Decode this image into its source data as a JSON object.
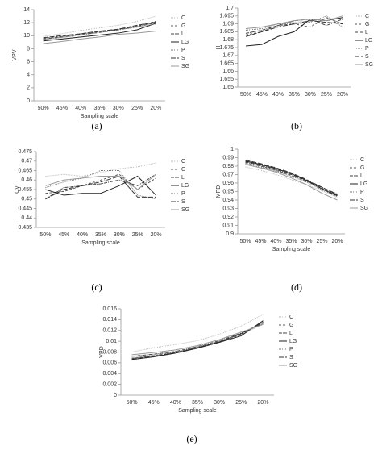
{
  "chart_data": [
    {
      "type": "line",
      "caption": "(a)",
      "y_label": "VPV",
      "x_label": "Sampling scale",
      "categories": [
        "50%",
        "45%",
        "40%",
        "35%",
        "30%",
        "25%",
        "20%"
      ],
      "ylim": [
        0,
        14
      ],
      "yticks": [
        0,
        2,
        4,
        6,
        8,
        10,
        12,
        14
      ],
      "series": [
        {
          "name": "C",
          "color": "#bbbbbb",
          "dash": "1,1",
          "values": [
            9.9,
            10.3,
            10.8,
            11.2,
            11.6,
            12.2,
            13.0
          ]
        },
        {
          "name": "G",
          "color": "#555555",
          "dash": "3,2",
          "values": [
            9.6,
            9.9,
            10.3,
            10.6,
            11.0,
            11.5,
            12.2
          ]
        },
        {
          "name": "L",
          "color": "#444444",
          "dash": "4,1,1,1",
          "values": [
            9.5,
            9.8,
            10.2,
            10.5,
            10.9,
            11.4,
            12.0
          ]
        },
        {
          "name": "LG",
          "color": "#222222",
          "dash": "",
          "values": [
            9.2,
            9.5,
            9.8,
            10.1,
            10.4,
            10.9,
            11.9
          ]
        },
        {
          "name": "P",
          "color": "#777777",
          "dash": "1,1",
          "values": [
            9.4,
            9.7,
            10.1,
            10.5,
            10.9,
            11.3,
            11.8
          ]
        },
        {
          "name": "S",
          "color": "#333333",
          "dash": "6,2",
          "values": [
            9.7,
            10.0,
            10.3,
            10.7,
            11.0,
            11.6,
            12.1
          ]
        },
        {
          "name": "SG",
          "color": "#999999",
          "dash": "",
          "values": [
            8.8,
            9.1,
            9.5,
            9.8,
            10.2,
            10.4,
            10.7
          ]
        }
      ]
    },
    {
      "type": "line",
      "caption": "(b)",
      "y_label": "H",
      "categories": [
        "50%",
        "45%",
        "40%",
        "35%",
        "30%",
        "25%",
        "20%"
      ],
      "ylim": [
        1.65,
        1.7
      ],
      "yticks": [
        1.65,
        1.655,
        1.66,
        1.665,
        1.67,
        1.675,
        1.68,
        1.685,
        1.69,
        1.695,
        1.7
      ],
      "series": [
        {
          "name": "C",
          "color": "#bbbbbb",
          "dash": "1,1",
          "values": [
            1.687,
            1.688,
            1.69,
            1.691,
            1.692,
            1.693,
            1.694
          ]
        },
        {
          "name": "G",
          "color": "#555555",
          "dash": "3,2",
          "values": [
            1.683,
            1.685,
            1.689,
            1.69,
            1.688,
            1.694,
            1.69
          ]
        },
        {
          "name": "L",
          "color": "#444444",
          "dash": "4,1,1,1",
          "values": [
            1.684,
            1.686,
            1.689,
            1.692,
            1.693,
            1.689,
            1.693
          ]
        },
        {
          "name": "LG",
          "color": "#222222",
          "dash": "",
          "values": [
            1.676,
            1.677,
            1.682,
            1.685,
            1.693,
            1.692,
            1.694
          ]
        },
        {
          "name": "P",
          "color": "#777777",
          "dash": "1,1",
          "values": [
            1.686,
            1.687,
            1.69,
            1.69,
            1.691,
            1.695,
            1.688
          ]
        },
        {
          "name": "S",
          "color": "#333333",
          "dash": "6,2",
          "values": [
            1.682,
            1.685,
            1.688,
            1.69,
            1.692,
            1.691,
            1.69
          ]
        },
        {
          "name": "SG",
          "color": "#999999",
          "dash": "",
          "values": [
            1.687,
            1.688,
            1.69,
            1.692,
            1.693,
            1.692,
            1.695
          ]
        }
      ]
    },
    {
      "type": "line",
      "caption": "(c)",
      "y_label": "CV",
      "x_label": "Sampling scale",
      "categories": [
        "50%",
        "45%",
        "40%",
        "35%",
        "30%",
        "25%",
        "20%"
      ],
      "ylim": [
        0.435,
        0.475
      ],
      "yticks": [
        0.435,
        0.44,
        0.445,
        0.45,
        0.455,
        0.46,
        0.465,
        0.47,
        0.475
      ],
      "series": [
        {
          "name": "C",
          "color": "#bbbbbb",
          "dash": "1,1",
          "values": [
            0.462,
            0.463,
            0.462,
            0.464,
            0.466,
            0.467,
            0.469
          ]
        },
        {
          "name": "G",
          "color": "#555555",
          "dash": "3,2",
          "values": [
            0.453,
            0.454,
            0.457,
            0.46,
            0.463,
            0.455,
            0.461
          ]
        },
        {
          "name": "L",
          "color": "#444444",
          "dash": "4,1,1,1",
          "values": [
            0.45,
            0.456,
            0.457,
            0.458,
            0.46,
            0.457,
            0.463
          ]
        },
        {
          "name": "LG",
          "color": "#222222",
          "dash": "",
          "values": [
            0.455,
            0.452,
            0.453,
            0.453,
            0.457,
            0.462,
            0.452
          ]
        },
        {
          "name": "P",
          "color": "#777777",
          "dash": "1,1",
          "values": [
            0.456,
            0.459,
            0.461,
            0.465,
            0.465,
            0.452,
            0.45
          ]
        },
        {
          "name": "S",
          "color": "#333333",
          "dash": "6,2",
          "values": [
            0.45,
            0.455,
            0.457,
            0.459,
            0.462,
            0.451,
            0.451
          ]
        },
        {
          "name": "SG",
          "color": "#999999",
          "dash": "",
          "values": [
            0.457,
            0.46,
            0.461,
            0.462,
            0.462,
            0.455,
            0.463
          ]
        }
      ]
    },
    {
      "type": "line",
      "caption": "(d)",
      "y_label": "MPD",
      "x_label": "Sampling scale",
      "categories": [
        "50%",
        "45%",
        "40%",
        "35%",
        "30%",
        "25%",
        "20%"
      ],
      "ylim": [
        0.9,
        1
      ],
      "yticks": [
        0.9,
        0.91,
        0.92,
        0.93,
        0.94,
        0.95,
        0.96,
        0.97,
        0.98,
        0.99,
        1
      ],
      "series": [
        {
          "name": "C",
          "color": "#bbbbbb",
          "dash": "1,1",
          "values": [
            0.979,
            0.975,
            0.97,
            0.964,
            0.958,
            0.951,
            0.943
          ]
        },
        {
          "name": "G",
          "color": "#555555",
          "dash": "3,2",
          "values": [
            0.984,
            0.98,
            0.975,
            0.969,
            0.962,
            0.954,
            0.946
          ]
        },
        {
          "name": "L",
          "color": "#444444",
          "dash": "4,1,1,1",
          "values": [
            0.985,
            0.981,
            0.976,
            0.97,
            0.963,
            0.955,
            0.947
          ]
        },
        {
          "name": "LG",
          "color": "#222222",
          "dash": "",
          "values": [
            0.986,
            0.982,
            0.977,
            0.971,
            0.963,
            0.953,
            0.945
          ]
        },
        {
          "name": "P",
          "color": "#777777",
          "dash": "1,1",
          "values": [
            0.983,
            0.979,
            0.974,
            0.968,
            0.961,
            0.952,
            0.944
          ]
        },
        {
          "name": "S",
          "color": "#333333",
          "dash": "6,2",
          "values": [
            0.987,
            0.983,
            0.978,
            0.972,
            0.964,
            0.955,
            0.946
          ]
        },
        {
          "name": "SG",
          "color": "#999999",
          "dash": "",
          "values": [
            0.982,
            0.978,
            0.973,
            0.966,
            0.958,
            0.948,
            0.94
          ]
        }
      ]
    },
    {
      "type": "line",
      "caption": "(e)",
      "y_label": "VPD",
      "x_label": "Sampling scale",
      "categories": [
        "50%",
        "45%",
        "40%",
        "35%",
        "30%",
        "25%",
        "20%"
      ],
      "ylim": [
        0,
        0.016
      ],
      "yticks": [
        0,
        0.002,
        0.004,
        0.006,
        0.008,
        0.01,
        0.012,
        0.014,
        0.016
      ],
      "series": [
        {
          "name": "C",
          "color": "#bbbbbb",
          "dash": "1,1",
          "values": [
            0.008,
            0.0088,
            0.0094,
            0.0101,
            0.0113,
            0.0128,
            0.015
          ]
        },
        {
          "name": "G",
          "color": "#555555",
          "dash": "3,2",
          "values": [
            0.0068,
            0.0073,
            0.0079,
            0.0088,
            0.0099,
            0.0112,
            0.0136
          ]
        },
        {
          "name": "L",
          "color": "#444444",
          "dash": "4,1,1,1",
          "values": [
            0.0072,
            0.0076,
            0.0081,
            0.009,
            0.0101,
            0.0115,
            0.0133
          ]
        },
        {
          "name": "LG",
          "color": "#222222",
          "dash": "",
          "values": [
            0.0066,
            0.0071,
            0.0078,
            0.0087,
            0.0098,
            0.011,
            0.0138
          ]
        },
        {
          "name": "P",
          "color": "#777777",
          "dash": "1,1",
          "values": [
            0.0069,
            0.0074,
            0.008,
            0.0089,
            0.01,
            0.0113,
            0.0132
          ]
        },
        {
          "name": "S",
          "color": "#333333",
          "dash": "6,2",
          "values": [
            0.0067,
            0.0072,
            0.0079,
            0.0088,
            0.0099,
            0.0114,
            0.0135
          ]
        },
        {
          "name": "SG",
          "color": "#999999",
          "dash": "",
          "values": [
            0.0075,
            0.0079,
            0.0084,
            0.0092,
            0.0103,
            0.0117,
            0.0131
          ]
        }
      ]
    }
  ]
}
